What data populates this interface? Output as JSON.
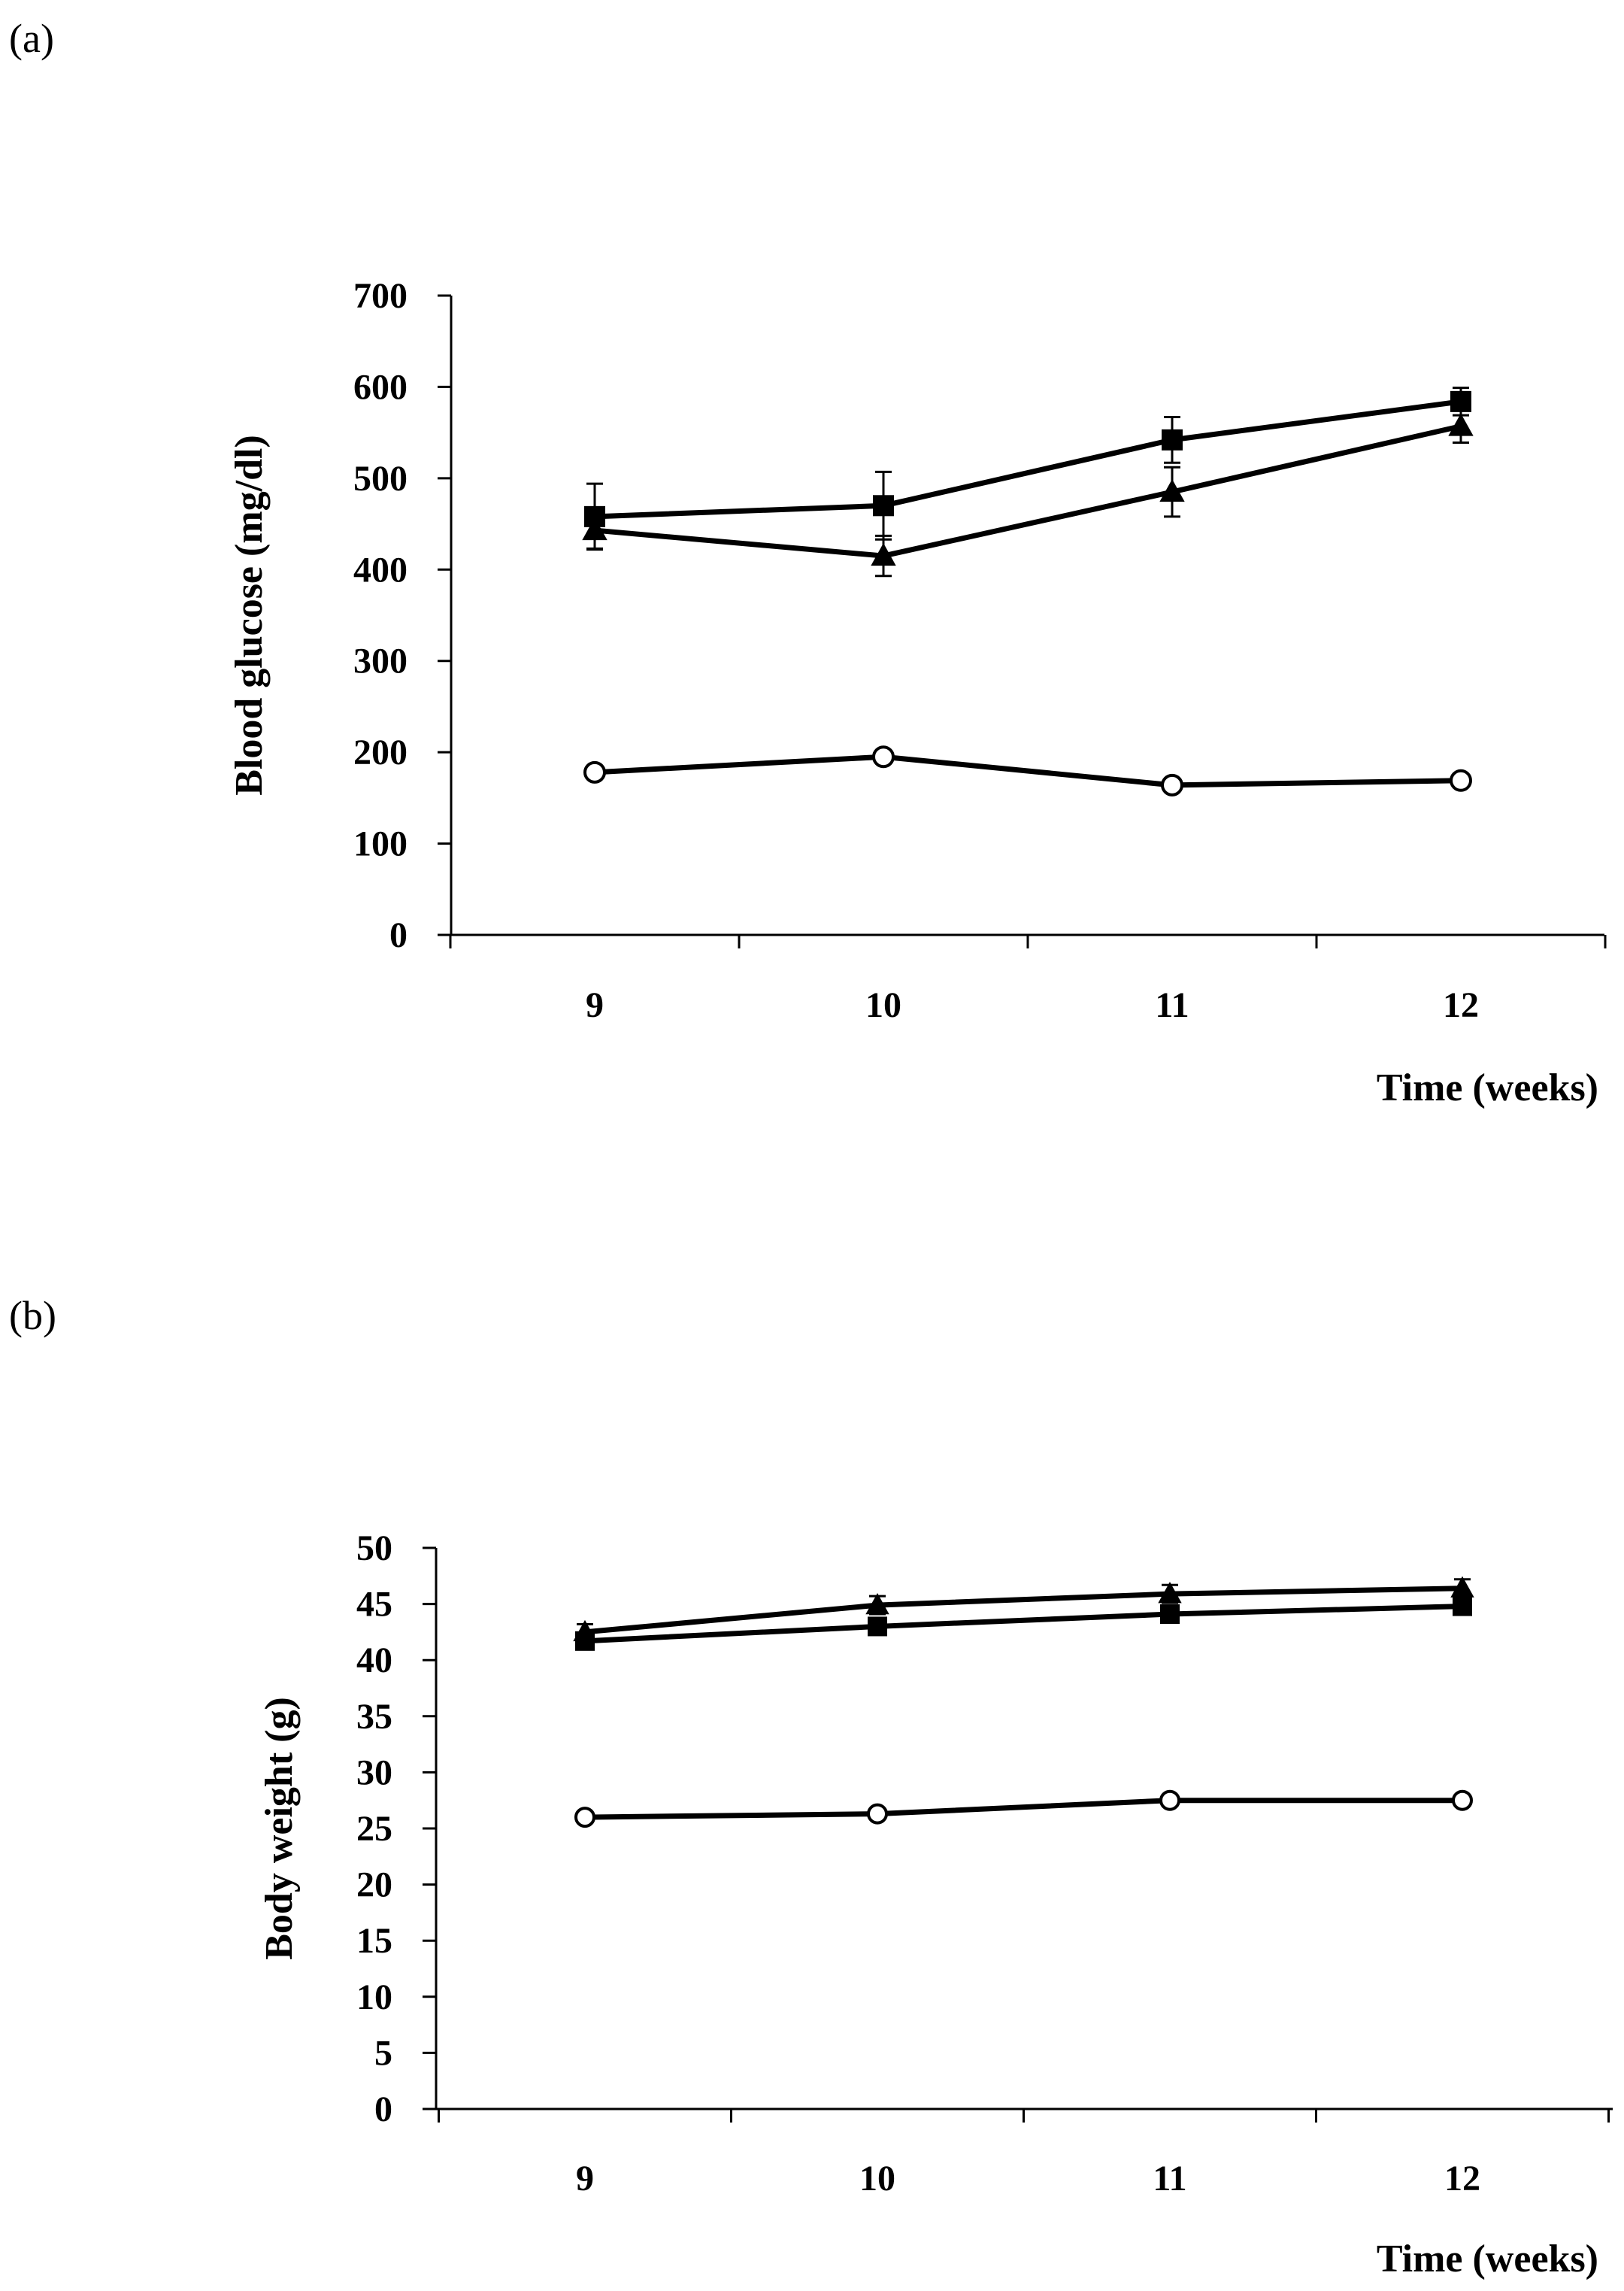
{
  "panels": {
    "a": {
      "label": "(a)"
    },
    "b": {
      "label": "(b)"
    }
  },
  "chart_data": [
    {
      "type": "line",
      "panel": "(a)",
      "xlabel": "Time (weeks)",
      "ylabel": "Blood glucose (mg/dl)",
      "x": [
        9,
        10,
        11,
        12
      ],
      "x_tick_labels": [
        "9",
        "10",
        "11",
        "12"
      ],
      "ylim": [
        0,
        700
      ],
      "y_ticks": [
        0,
        100,
        200,
        300,
        400,
        500,
        600,
        700
      ],
      "y_tick_labels": [
        "0",
        "100",
        "200",
        "300",
        "400",
        "500",
        "600",
        "700"
      ],
      "grid": false,
      "legend": "none",
      "series": [
        {
          "marker": "square",
          "fill": "#000000",
          "values": [
            458,
            470,
            542,
            584
          ],
          "errors": [
            36,
            37,
            25,
            15
          ]
        },
        {
          "marker": "triangle",
          "fill": "#000000",
          "values": [
            443,
            415,
            485,
            557
          ],
          "errors": [
            20,
            22,
            27,
            18
          ]
        },
        {
          "marker": "circle",
          "fill": "#ffffff",
          "values": [
            178,
            195,
            164,
            169
          ],
          "errors": [
            5,
            5,
            5,
            5
          ]
        }
      ]
    },
    {
      "type": "line",
      "panel": "(b)",
      "xlabel": "Time (weeks)",
      "ylabel": "Body weight (g)",
      "x": [
        9,
        10,
        11,
        12
      ],
      "x_tick_labels": [
        "9",
        "10",
        "11",
        "12"
      ],
      "ylim": [
        0,
        50
      ],
      "y_ticks": [
        0,
        5,
        10,
        15,
        20,
        25,
        30,
        35,
        40,
        45,
        50
      ],
      "y_tick_labels": [
        "0",
        "5",
        "10",
        "15",
        "20",
        "25",
        "30",
        "35",
        "40",
        "45",
        "50"
      ],
      "grid": false,
      "legend": "none",
      "series": [
        {
          "marker": "triangle",
          "fill": "#000000",
          "values": [
            42.5,
            44.9,
            45.9,
            46.4
          ],
          "errors": [
            0.7,
            0.8,
            0.8,
            0.8
          ]
        },
        {
          "marker": "square",
          "fill": "#000000",
          "values": [
            41.7,
            43.0,
            44.1,
            44.8
          ],
          "errors": [
            0.5,
            0.5,
            0.5,
            0.5
          ]
        },
        {
          "marker": "circle",
          "fill": "#ffffff",
          "values": [
            26.0,
            26.3,
            27.5,
            27.5
          ],
          "errors": [
            0.3,
            0.3,
            0.3,
            0.3
          ]
        }
      ]
    }
  ]
}
